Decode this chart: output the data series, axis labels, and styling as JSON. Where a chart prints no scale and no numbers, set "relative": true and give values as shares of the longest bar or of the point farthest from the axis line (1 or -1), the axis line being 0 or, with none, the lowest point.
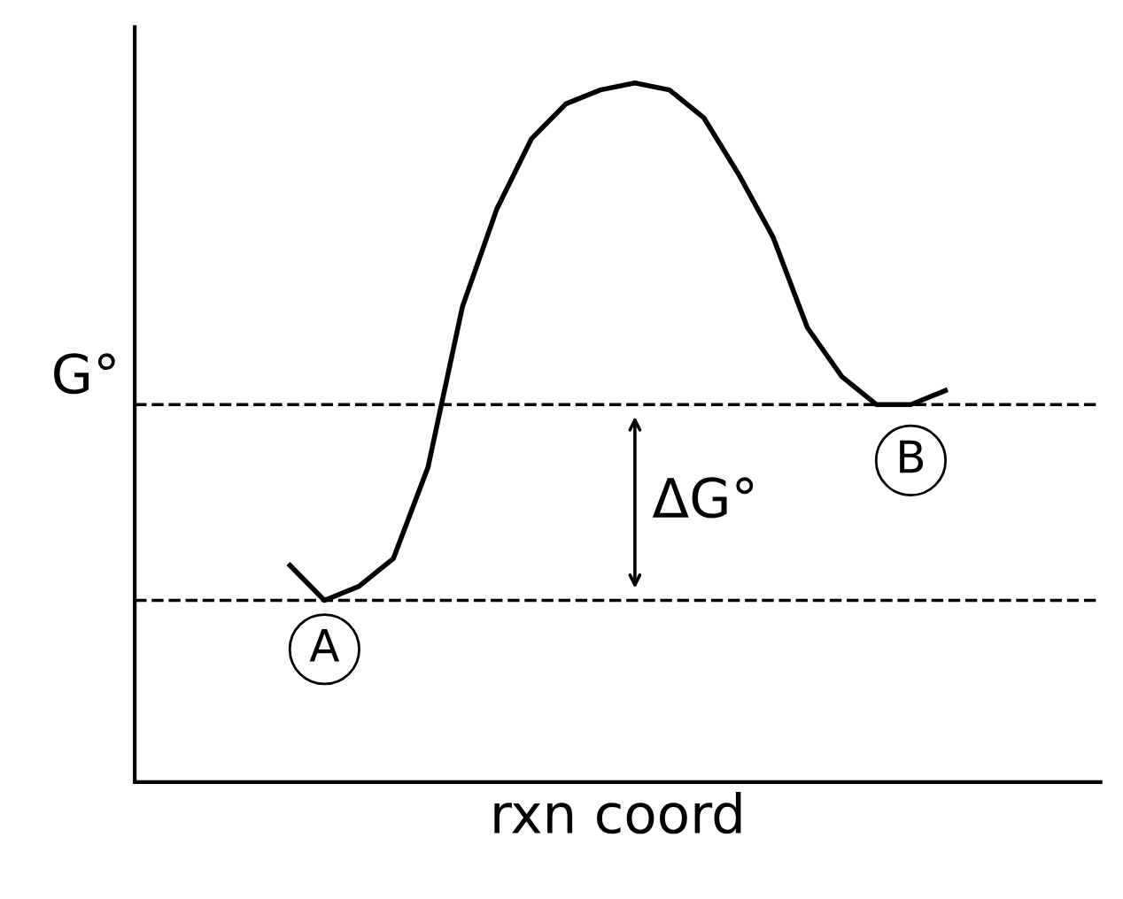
{
  "chart_data": {
    "type": "line",
    "relative": true,
    "xlabel": "rxn coord",
    "ylabel": "G°",
    "categories": [
      null,
      null,
      null,
      null,
      null,
      null,
      null,
      null,
      null,
      null,
      null,
      null,
      null,
      null,
      null,
      null,
      null,
      null,
      null,
      null,
      null,
      null,
      null,
      null,
      null,
      null,
      null,
      null
    ],
    "series": [
      {
        "color": "#000000",
        "values": [
          null,
          null,
          null,
          null,
          0.31,
          0.26,
          0.28,
          0.32,
          0.45,
          0.68,
          0.82,
          0.92,
          0.97,
          0.99,
          1.0,
          0.99,
          0.95,
          0.87,
          0.78,
          0.65,
          0.58,
          0.54,
          0.54,
          0.56,
          null,
          null,
          null,
          null
        ]
      }
    ],
    "ref_lines": [
      {
        "axis": "y",
        "value": 0.26,
        "line_style": "dashed",
        "color": "#000000"
      },
      {
        "axis": "y",
        "value": 0.54,
        "line_style": "dashed",
        "color": "#000000"
      }
    ],
    "annotations": [
      "A",
      "B",
      "ΔG°"
    ],
    "marker": "none",
    "line_style": "solid",
    "grid": false,
    "legend": false,
    "tick_labels": false
  }
}
